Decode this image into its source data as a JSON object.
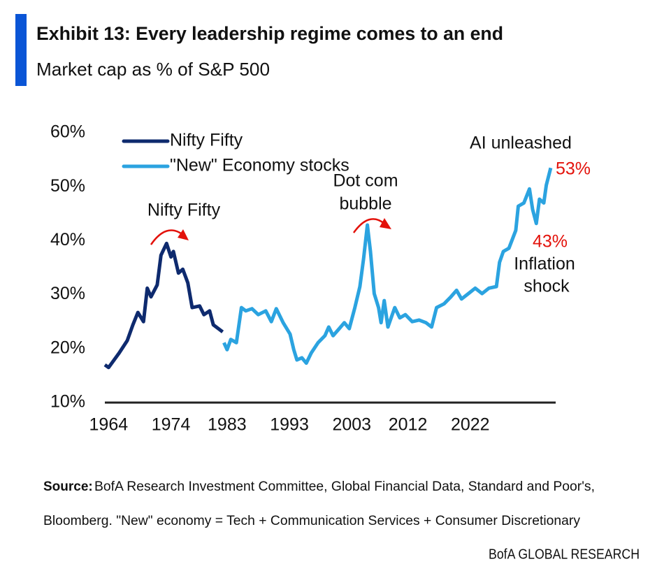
{
  "chart_data": {
    "type": "line",
    "title": "Exhibit 13: Every leadership regime comes to an end",
    "subtitle": "Market cap as % of S&P 500",
    "series": [
      {
        "name": "Nifty Fifty",
        "color": "#0e2a6e",
        "x": [
          1963.4,
          1964,
          1965.7,
          1967,
          1967.9,
          1968.7,
          1969.6,
          1970.2,
          1970.8,
          1971.8,
          1972.4,
          1973.3,
          1974,
          1974.4,
          1975.2,
          1975.9,
          1976.7,
          1977.4,
          1978.6,
          1979.3,
          1980.2,
          1980.8,
          1982.3
        ],
        "values": [
          17,
          16.5,
          19.2,
          21.5,
          24.4,
          26.7,
          25,
          31.2,
          29.6,
          31.8,
          37.3,
          39.5,
          37,
          38,
          34,
          34.7,
          32.2,
          27.6,
          27.9,
          26.3,
          27,
          24.4,
          23.1
        ]
      },
      {
        "name": "\"New\" Economy stocks",
        "color": "#2ba3e0",
        "x": [
          1982.5,
          1983,
          1983.6,
          1984.5,
          1985.3,
          1986,
          1987,
          1988,
          1989.2,
          1990.1,
          1990.9,
          1992,
          1993.1,
          1993.7,
          1994.2,
          1995,
          1995.7,
          1996.5,
          1997.6,
          1998.7,
          1999.3,
          2000,
          2001,
          2001.8,
          2002.6,
          2003.5,
          2004.3,
          2004.9,
          2005.5,
          2006,
          2006.6,
          2007.3,
          2007.7,
          2008.2,
          2008.8,
          2009.9,
          2010.7,
          2011.6,
          2012.7,
          2013.8,
          2014.9,
          2015.8,
          2016.6,
          2017.8,
          2018.9,
          2019.8,
          2020.6,
          2021.7,
          2022.8,
          2023.9,
          2025,
          2026.2,
          2026.7,
          2027.3,
          2028.2,
          2029.3,
          2029.7,
          2030.6,
          2031.5,
          2032,
          2032.6,
          2033.1,
          2033.8,
          2034.2,
          2034.9
        ],
        "values": [
          21.1,
          19.8,
          21.7,
          21.1,
          27.6,
          27,
          27.4,
          26.3,
          27,
          25,
          27.4,
          24.8,
          22.7,
          19.8,
          17.9,
          18.3,
          17.3,
          19.2,
          21.1,
          22.4,
          24,
          22.4,
          23.7,
          24.8,
          23.7,
          27.6,
          31.5,
          36.7,
          42.9,
          38,
          30.2,
          27.6,
          24.8,
          28.9,
          24,
          27.6,
          25.7,
          26.3,
          25,
          25.3,
          24.8,
          24,
          27.6,
          28.3,
          29.6,
          30.8,
          29.2,
          30.2,
          31.2,
          30.2,
          31.2,
          31.5,
          36,
          38,
          38.6,
          41.9,
          46.4,
          47,
          49.6,
          45.8,
          43.2,
          47.7,
          47,
          50.3,
          53.5
        ]
      }
    ],
    "xlim": [
      1963.4,
      2035.7
    ],
    "xticks": [
      1964,
      1974,
      1983,
      1993,
      2003,
      2012,
      2022
    ],
    "ylim": [
      10,
      60
    ],
    "yticks": [
      {
        "value": 10,
        "label": "10%"
      },
      {
        "value": 20,
        "label": "20%"
      },
      {
        "value": 30,
        "label": "30%"
      },
      {
        "value": 40,
        "label": "40%"
      },
      {
        "value": 50,
        "label": "50%"
      },
      {
        "value": 60,
        "label": "60%"
      }
    ],
    "annotations": [
      "Nifty Fifty",
      "Dot com",
      "bubble",
      "AI unleashed",
      "53%",
      "43%",
      "Inflation",
      "shock"
    ],
    "source_label": "Source:",
    "source_lines": [
      "BofA Research Investment Committee, Global Financial Data, Standard and Poor's,",
      "Bloomberg. \"New\" economy = Tech + Communication Services + Consumer Discretionary"
    ],
    "branding": "BofA GLOBAL RESEARCH"
  }
}
